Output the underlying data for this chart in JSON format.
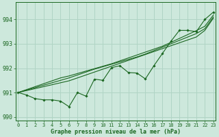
{
  "xlabel": "Graphe pression niveau de la mer (hPa)",
  "bg_color": "#cde8dc",
  "grid_color": "#b0d4c5",
  "line_color": "#1a6620",
  "hours": [
    0,
    1,
    2,
    3,
    4,
    5,
    6,
    7,
    8,
    9,
    10,
    11,
    12,
    13,
    14,
    15,
    16,
    17,
    18,
    19,
    20,
    21,
    22,
    23
  ],
  "main_data": [
    991.0,
    990.9,
    990.75,
    990.7,
    990.7,
    990.65,
    990.42,
    991.0,
    990.85,
    991.55,
    991.5,
    992.02,
    992.1,
    991.82,
    991.8,
    991.56,
    992.1,
    992.6,
    993.1,
    993.55,
    993.55,
    993.5,
    994.0,
    994.3
  ],
  "smooth1": [
    991.0,
    991.08,
    991.16,
    991.24,
    991.32,
    991.4,
    991.48,
    991.6,
    991.72,
    991.84,
    991.96,
    992.08,
    992.2,
    992.32,
    992.44,
    992.56,
    992.68,
    992.8,
    992.92,
    993.04,
    993.16,
    993.28,
    993.55,
    994.05
  ],
  "smooth2": [
    991.0,
    991.1,
    991.2,
    991.3,
    991.4,
    991.5,
    991.6,
    991.72,
    991.84,
    991.96,
    992.06,
    992.16,
    992.26,
    992.36,
    992.46,
    992.58,
    992.72,
    992.86,
    993.0,
    993.14,
    993.28,
    993.42,
    993.62,
    994.1
  ],
  "smooth3": [
    991.0,
    991.12,
    991.24,
    991.36,
    991.48,
    991.6,
    991.68,
    991.78,
    991.88,
    991.98,
    992.08,
    992.18,
    992.3,
    992.42,
    992.54,
    992.66,
    992.78,
    992.9,
    993.06,
    993.22,
    993.38,
    993.54,
    993.72,
    994.18
  ],
  "ylim": [
    989.85,
    994.7
  ],
  "yticks": [
    990,
    991,
    992,
    993,
    994
  ],
  "xlim": [
    -0.3,
    23.3
  ],
  "figwidth": 3.2,
  "figheight": 2.0,
  "dpi": 100
}
